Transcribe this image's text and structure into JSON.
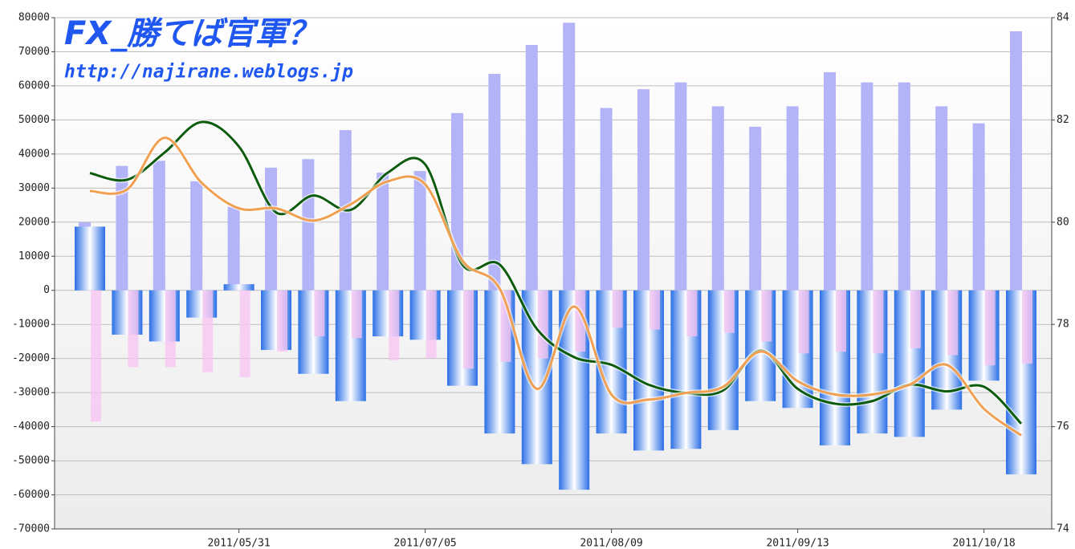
{
  "chart_data": {
    "type": "bar",
    "title": "FX_勝てば官軍？",
    "subtitle": "http://najirane.weblogs.jp",
    "categories": [
      null,
      null,
      null,
      null,
      "2011/05/31",
      null,
      null,
      null,
      null,
      "2011/07/05",
      null,
      null,
      null,
      null,
      "2011/08/09",
      null,
      null,
      null,
      null,
      "2011/09/13",
      null,
      null,
      null,
      null,
      "2011/10/18",
      null
    ],
    "ylim": [
      -70000,
      80000
    ],
    "yticks": [
      80000,
      70000,
      60000,
      50000,
      40000,
      30000,
      20000,
      10000,
      0,
      -10000,
      -20000,
      -30000,
      -40000,
      -50000,
      -60000,
      -70000
    ],
    "y2lim": [
      74,
      84
    ],
    "y2ticks": [
      84,
      82,
      80,
      78,
      76,
      74
    ],
    "grid": true,
    "series": [
      {
        "type": "bar",
        "color": "#b3b3f7",
        "values": [
          20000,
          36500,
          38000,
          32000,
          24500,
          36000,
          38500,
          47000,
          34500,
          35000,
          52000,
          63500,
          72000,
          78500,
          53500,
          59000,
          61000,
          54000,
          48000,
          54000,
          64000,
          61000,
          61000,
          54000,
          49000,
          76000
        ]
      },
      {
        "type": "bar",
        "color": "#2a6fe6",
        "values": [
          18700,
          -13000,
          -15000,
          -8000,
          1800,
          -17500,
          -24500,
          -32500,
          -13500,
          -14500,
          -28000,
          -42000,
          -51000,
          -58500,
          -42000,
          -47000,
          -46500,
          -41000,
          -32500,
          -34500,
          -45500,
          -42000,
          -43000,
          -35000,
          -26500,
          -54000
        ]
      },
      {
        "type": "bar",
        "color": "#f7c3f2",
        "values": [
          -38500,
          -22500,
          -22500,
          -24000,
          -25500,
          -18000,
          -13500,
          -14000,
          -20500,
          -20000,
          -23000,
          -21000,
          -20000,
          -18000,
          -11000,
          -11500,
          -13500,
          -12500,
          -15000,
          -18500,
          -18000,
          -18500,
          -17000,
          -19000,
          -22000,
          -21500
        ]
      },
      {
        "type": "line",
        "axis": "y2",
        "color": "#0d5c0d",
        "values": [
          80.96,
          80.83,
          81.36,
          81.96,
          81.48,
          80.19,
          80.52,
          80.24,
          80.97,
          81.13,
          79.17,
          79.17,
          77.91,
          77.36,
          77.21,
          76.82,
          76.66,
          76.71,
          77.49,
          76.74,
          76.45,
          76.5,
          76.82,
          76.69,
          76.78,
          76.06
        ]
      },
      {
        "type": "line",
        "axis": "y2",
        "color": "#f0a050",
        "values": [
          80.61,
          80.64,
          81.65,
          80.77,
          80.27,
          80.27,
          80.03,
          80.35,
          80.8,
          80.74,
          79.25,
          78.7,
          76.74,
          78.35,
          76.63,
          76.53,
          76.66,
          76.78,
          77.47,
          76.89,
          76.63,
          76.63,
          76.82,
          77.21,
          76.35,
          75.83
        ]
      }
    ]
  }
}
